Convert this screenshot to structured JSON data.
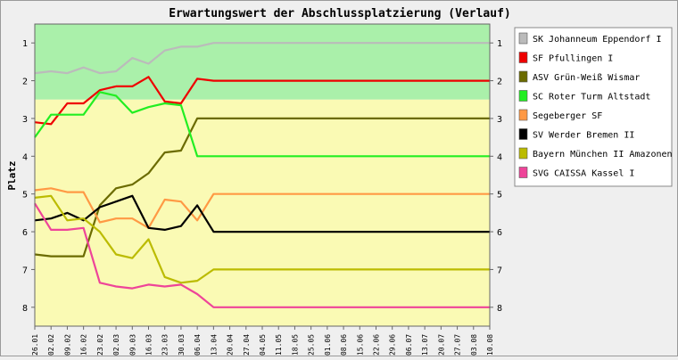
{
  "chart_data": {
    "type": "line",
    "title": "Erwartungswert der Abschlussplatzierung (Verlauf)",
    "ylabel": "Platz",
    "xlabel": "",
    "ylim": [
      0.5,
      8.5
    ],
    "y_inverted": true,
    "y_ticks": [
      "1",
      "2",
      "3",
      "4",
      "5",
      "6",
      "7",
      "8"
    ],
    "zones": [
      {
        "from": 0.5,
        "to": 2.5,
        "color": "#aaf0aa"
      },
      {
        "from": 2.5,
        "to": 8.5,
        "color": "#fafab4"
      }
    ],
    "legend_position": "right",
    "x": [
      "26.01",
      "02.02",
      "09.02",
      "16.02",
      "23.02",
      "02.03",
      "09.03",
      "16.03",
      "23.03",
      "30.03",
      "06.04",
      "13.04",
      "20.04",
      "27.04",
      "04.05",
      "11.05",
      "18.05",
      "25.05",
      "01.06",
      "08.06",
      "15.06",
      "22.06",
      "29.06",
      "06.07",
      "13.07",
      "20.07",
      "27.07",
      "03.08",
      "10.08"
    ],
    "series": [
      {
        "name": "SK Johanneum Eppendorf I",
        "color": "#bbbbbb",
        "values": [
          1.8,
          1.75,
          1.8,
          1.65,
          1.8,
          1.75,
          1.4,
          1.55,
          1.2,
          1.1,
          1.1,
          1.0,
          1.0,
          1.0,
          1.0,
          1.0,
          1.0,
          1.0,
          1.0,
          1.0,
          1.0,
          1.0,
          1.0,
          1.0,
          1.0,
          1.0,
          1.0,
          1.0,
          1.0
        ]
      },
      {
        "name": "SF Pfullingen I",
        "color": "#ee0000",
        "values": [
          3.1,
          3.15,
          2.6,
          2.6,
          2.25,
          2.15,
          2.15,
          1.9,
          2.55,
          2.6,
          1.95,
          2.0,
          2.0,
          2.0,
          2.0,
          2.0,
          2.0,
          2.0,
          2.0,
          2.0,
          2.0,
          2.0,
          2.0,
          2.0,
          2.0,
          2.0,
          2.0,
          2.0,
          2.0
        ]
      },
      {
        "name": "ASV Grün-Weiß Wismar",
        "color": "#6b6b00",
        "values": [
          6.6,
          6.65,
          6.65,
          6.65,
          5.3,
          4.85,
          4.75,
          4.45,
          3.9,
          3.85,
          3.0,
          3.0,
          3.0,
          3.0,
          3.0,
          3.0,
          3.0,
          3.0,
          3.0,
          3.0,
          3.0,
          3.0,
          3.0,
          3.0,
          3.0,
          3.0,
          3.0,
          3.0,
          3.0
        ]
      },
      {
        "name": "SC Roter Turm Altstadt",
        "color": "#22ee22",
        "values": [
          3.5,
          2.9,
          2.9,
          2.9,
          2.3,
          2.4,
          2.85,
          2.7,
          2.6,
          2.65,
          4.0,
          4.0,
          4.0,
          4.0,
          4.0,
          4.0,
          4.0,
          4.0,
          4.0,
          4.0,
          4.0,
          4.0,
          4.0,
          4.0,
          4.0,
          4.0,
          4.0,
          4.0,
          4.0
        ]
      },
      {
        "name": "Segeberger SF",
        "color": "#ff9944",
        "values": [
          4.9,
          4.85,
          4.95,
          4.95,
          5.75,
          5.65,
          5.65,
          5.9,
          5.15,
          5.2,
          5.7,
          5.0,
          5.0,
          5.0,
          5.0,
          5.0,
          5.0,
          5.0,
          5.0,
          5.0,
          5.0,
          5.0,
          5.0,
          5.0,
          5.0,
          5.0,
          5.0,
          5.0,
          5.0
        ]
      },
      {
        "name": "SV Werder Bremen II",
        "color": "#000000",
        "values": [
          5.7,
          5.65,
          5.5,
          5.7,
          5.35,
          5.2,
          5.05,
          5.9,
          5.95,
          5.85,
          5.3,
          6.0,
          6.0,
          6.0,
          6.0,
          6.0,
          6.0,
          6.0,
          6.0,
          6.0,
          6.0,
          6.0,
          6.0,
          6.0,
          6.0,
          6.0,
          6.0,
          6.0,
          6.0
        ]
      },
      {
        "name": "Bayern München II Amazonen",
        "color": "#bbbb00",
        "values": [
          5.1,
          5.05,
          5.7,
          5.65,
          6.0,
          6.6,
          6.7,
          6.2,
          7.2,
          7.35,
          7.3,
          7.0,
          7.0,
          7.0,
          7.0,
          7.0,
          7.0,
          7.0,
          7.0,
          7.0,
          7.0,
          7.0,
          7.0,
          7.0,
          7.0,
          7.0,
          7.0,
          7.0,
          7.0
        ]
      },
      {
        "name": "SVG CAISSA Kassel I",
        "color": "#ee4499",
        "values": [
          5.25,
          5.95,
          5.95,
          5.9,
          7.35,
          7.45,
          7.5,
          7.4,
          7.45,
          7.4,
          7.65,
          8.0,
          8.0,
          8.0,
          8.0,
          8.0,
          8.0,
          8.0,
          8.0,
          8.0,
          8.0,
          8.0,
          8.0,
          8.0,
          8.0,
          8.0,
          8.0,
          8.0,
          8.0
        ]
      }
    ]
  }
}
